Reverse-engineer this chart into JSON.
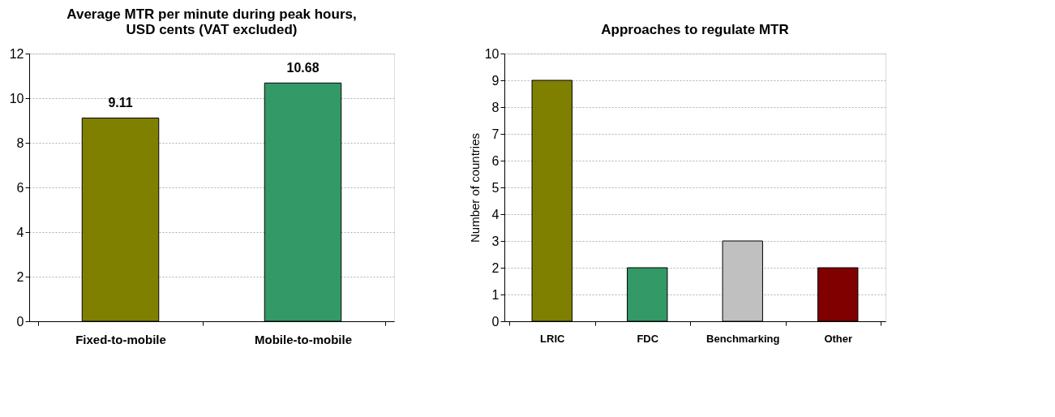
{
  "chart_data": [
    {
      "type": "bar",
      "title": [
        "Average MTR per minute during peak hours,",
        "USD cents (VAT excluded)"
      ],
      "categories": [
        "Fixed-to-mobile",
        "Mobile-to-mobile"
      ],
      "values": [
        9.11,
        10.68
      ],
      "colors": [
        "#808000",
        "#339966"
      ],
      "ylim": [
        0,
        12
      ],
      "yticks": [
        0,
        2,
        4,
        6,
        8,
        10,
        12
      ],
      "grid": "y",
      "data_labels": true
    },
    {
      "type": "bar",
      "title": "Approaches to regulate MTR",
      "ylabel": "Number of countries",
      "categories": [
        "LRIC",
        "FDC",
        "Benchmarking",
        "Other"
      ],
      "values": [
        9,
        2,
        3,
        2
      ],
      "colors": [
        "#808000",
        "#339966",
        "#c0c0c0",
        "#800000"
      ],
      "ylim": [
        0,
        10
      ],
      "yticks": [
        0,
        1,
        2,
        3,
        4,
        5,
        6,
        7,
        8,
        9,
        10
      ],
      "grid": "y"
    }
  ]
}
